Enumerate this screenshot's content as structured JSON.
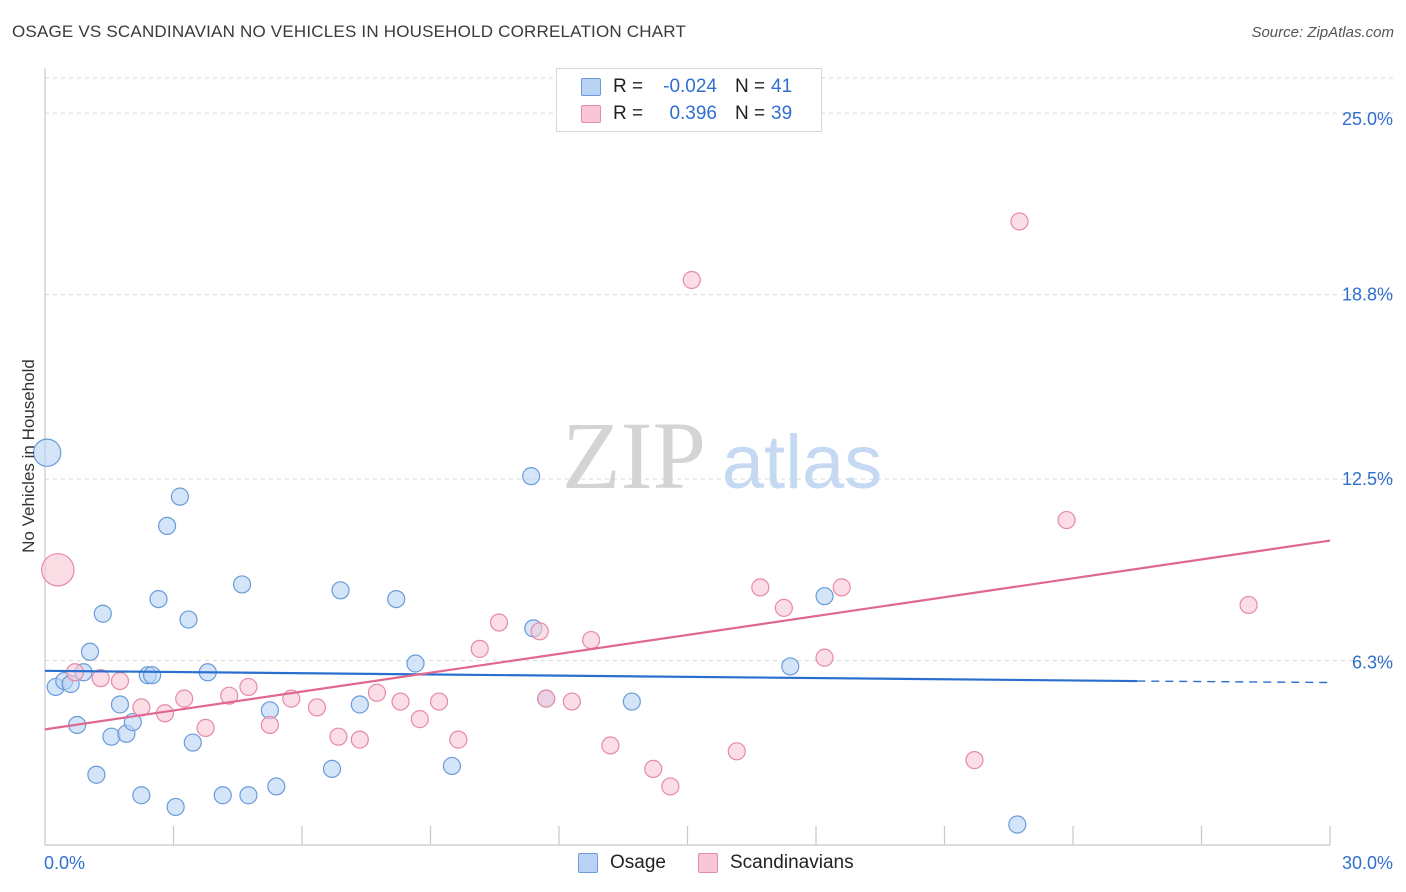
{
  "title": "OSAGE VS SCANDINAVIAN NO VEHICLES IN HOUSEHOLD CORRELATION CHART",
  "source": "Source: ZipAtlas.com",
  "watermark": {
    "zip": "ZIP",
    "atlas": "atlas"
  },
  "legend": {
    "rows": [
      {
        "r_label": "R =",
        "r_value": "-0.024",
        "n_label": "N =",
        "n_value": "41"
      },
      {
        "r_label": "R =",
        "r_value": "0.396",
        "n_label": "N =",
        "n_value": "39"
      }
    ]
  },
  "bottom_legend": {
    "osage": "Osage",
    "scandinavians": "Scandinavians"
  },
  "colors": {
    "osage_fill": "#b9d3f5",
    "osage_stroke": "#6a9bd8",
    "osage_line": "#2a6fd0",
    "scand_fill": "#f9c6d6",
    "scand_stroke": "#e68aa8",
    "scand_line": "#e06890",
    "axis_label": "#2f6fcf",
    "grid": "#d9d9d9"
  },
  "chart_data": {
    "type": "scatter",
    "title": "OSAGE VS SCANDINAVIAN NO VEHICLES IN HOUSEHOLD CORRELATION CHART",
    "xlabel": "",
    "ylabel": "No Vehicles in Household",
    "xlim": [
      0,
      30
    ],
    "ylim": [
      0,
      26.2
    ],
    "x_tick_labels": [
      "0.0%",
      "30.0%"
    ],
    "y_ticks": [
      6.3,
      12.5,
      18.8,
      25.0
    ],
    "y_tick_labels": [
      "6.3%",
      "12.5%",
      "18.8%",
      "25.0%"
    ],
    "series": [
      {
        "name": "Osage",
        "r": -0.024,
        "n": 41,
        "trend": {
          "x0": 0,
          "y0": 5.95,
          "x1": 25.5,
          "y1": 5.6,
          "dashed_to_x": 30,
          "dashed_to_y": 5.55
        },
        "points": [
          {
            "x": 0.05,
            "y": 13.4,
            "s": 1.6
          },
          {
            "x": 0.25,
            "y": 5.4
          },
          {
            "x": 0.45,
            "y": 5.6
          },
          {
            "x": 0.6,
            "y": 5.5
          },
          {
            "x": 0.75,
            "y": 4.1
          },
          {
            "x": 0.9,
            "y": 5.9
          },
          {
            "x": 1.05,
            "y": 6.6
          },
          {
            "x": 1.2,
            "y": 2.4
          },
          {
            "x": 1.35,
            "y": 7.9
          },
          {
            "x": 1.55,
            "y": 3.7
          },
          {
            "x": 1.75,
            "y": 4.8
          },
          {
            "x": 1.9,
            "y": 3.8
          },
          {
            "x": 2.05,
            "y": 4.2
          },
          {
            "x": 2.25,
            "y": 1.7
          },
          {
            "x": 2.4,
            "y": 5.8
          },
          {
            "x": 2.5,
            "y": 5.8
          },
          {
            "x": 2.65,
            "y": 8.4
          },
          {
            "x": 2.85,
            "y": 10.9
          },
          {
            "x": 3.05,
            "y": 1.3
          },
          {
            "x": 3.15,
            "y": 11.9
          },
          {
            "x": 3.35,
            "y": 7.7
          },
          {
            "x": 3.45,
            "y": 3.5
          },
          {
            "x": 3.8,
            "y": 5.9
          },
          {
            "x": 4.15,
            "y": 1.7
          },
          {
            "x": 4.6,
            "y": 8.9
          },
          {
            "x": 4.75,
            "y": 1.7
          },
          {
            "x": 5.25,
            "y": 4.6
          },
          {
            "x": 5.4,
            "y": 2.0
          },
          {
            "x": 6.7,
            "y": 2.6
          },
          {
            "x": 6.9,
            "y": 8.7
          },
          {
            "x": 7.35,
            "y": 4.8
          },
          {
            "x": 8.2,
            "y": 8.4
          },
          {
            "x": 8.65,
            "y": 6.2
          },
          {
            "x": 9.5,
            "y": 2.7
          },
          {
            "x": 11.35,
            "y": 12.6
          },
          {
            "x": 11.4,
            "y": 7.4
          },
          {
            "x": 11.7,
            "y": 5.0
          },
          {
            "x": 13.7,
            "y": 4.9
          },
          {
            "x": 17.4,
            "y": 6.1
          },
          {
            "x": 18.2,
            "y": 8.5
          },
          {
            "x": 22.7,
            "y": 0.7
          }
        ]
      },
      {
        "name": "Scandinavians",
        "r": 0.396,
        "n": 39,
        "trend": {
          "x0": 0,
          "y0": 3.95,
          "x1": 30,
          "y1": 10.4
        },
        "points": [
          {
            "x": 0.3,
            "y": 9.4,
            "s": 1.9
          },
          {
            "x": 0.7,
            "y": 5.9
          },
          {
            "x": 1.3,
            "y": 5.7
          },
          {
            "x": 1.75,
            "y": 5.6
          },
          {
            "x": 2.25,
            "y": 4.7
          },
          {
            "x": 2.8,
            "y": 4.5
          },
          {
            "x": 3.25,
            "y": 5.0
          },
          {
            "x": 3.75,
            "y": 4.0
          },
          {
            "x": 4.3,
            "y": 5.1
          },
          {
            "x": 4.75,
            "y": 5.4
          },
          {
            "x": 5.25,
            "y": 4.1
          },
          {
            "x": 5.75,
            "y": 5.0
          },
          {
            "x": 6.35,
            "y": 4.7
          },
          {
            "x": 6.85,
            "y": 3.7
          },
          {
            "x": 7.35,
            "y": 3.6
          },
          {
            "x": 7.75,
            "y": 5.2
          },
          {
            "x": 8.3,
            "y": 4.9
          },
          {
            "x": 8.75,
            "y": 4.3
          },
          {
            "x": 9.2,
            "y": 4.9
          },
          {
            "x": 9.65,
            "y": 3.6
          },
          {
            "x": 10.15,
            "y": 6.7
          },
          {
            "x": 10.6,
            "y": 7.6
          },
          {
            "x": 11.55,
            "y": 7.3
          },
          {
            "x": 11.7,
            "y": 5.0
          },
          {
            "x": 12.3,
            "y": 4.9
          },
          {
            "x": 12.75,
            "y": 7.0
          },
          {
            "x": 13.2,
            "y": 3.4
          },
          {
            "x": 14.2,
            "y": 2.6
          },
          {
            "x": 14.6,
            "y": 2.0
          },
          {
            "x": 15.1,
            "y": 19.3
          },
          {
            "x": 16.15,
            "y": 3.2
          },
          {
            "x": 16.7,
            "y": 8.8
          },
          {
            "x": 17.25,
            "y": 8.1
          },
          {
            "x": 18.2,
            "y": 6.4
          },
          {
            "x": 18.6,
            "y": 8.8
          },
          {
            "x": 21.7,
            "y": 2.9
          },
          {
            "x": 22.75,
            "y": 21.3
          },
          {
            "x": 23.85,
            "y": 11.1
          },
          {
            "x": 28.1,
            "y": 8.2
          }
        ]
      }
    ]
  }
}
